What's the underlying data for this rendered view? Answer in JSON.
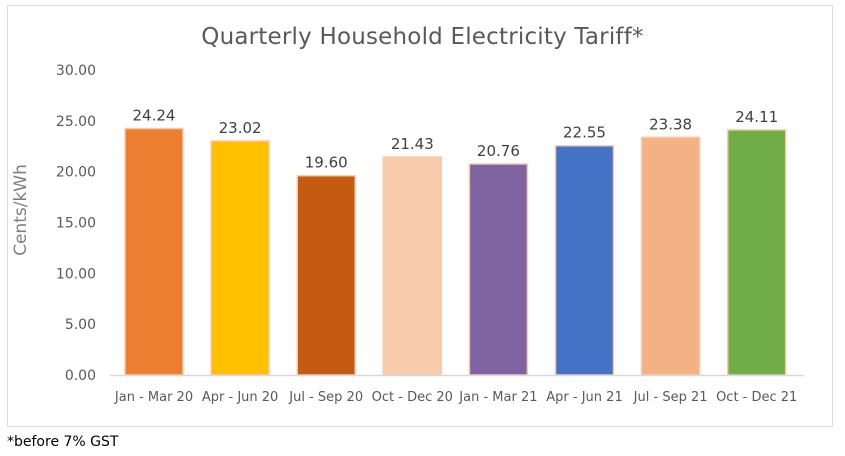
{
  "chart_data": {
    "type": "bar",
    "title": "Quarterly Household Electricity Tariff*",
    "xlabel": "",
    "ylabel": "Cents/kWh",
    "ylim": [
      0,
      30
    ],
    "yticks": [
      "0.00",
      "5.00",
      "10.00",
      "15.00",
      "20.00",
      "25.00",
      "30.00"
    ],
    "ytick_values": [
      0,
      5,
      10,
      15,
      20,
      25,
      30
    ],
    "grid": false,
    "legend": "none",
    "categories": [
      "Jan - Mar 20",
      "Apr - Jun 20",
      "Jul - Sep 20",
      "Oct - Dec 20",
      "Jan - Mar 21",
      "Apr - Jun 21",
      "Jul - Sep 21",
      "Oct - Dec 21"
    ],
    "values": [
      24.24,
      23.02,
      19.6,
      21.43,
      20.76,
      22.55,
      23.38,
      24.11
    ],
    "data_labels": [
      "24.24",
      "23.02",
      "19.60",
      "21.43",
      "20.76",
      "22.55",
      "23.38",
      "24.11"
    ],
    "colors": [
      "#ed7d31",
      "#ffc000",
      "#c55a11",
      "#f8cbad",
      "#8064a2",
      "#4472c4",
      "#f4b183",
      "#70ad47"
    ],
    "bar_edge_color": "#f8cbad",
    "footnote": "*before 7% GST"
  }
}
